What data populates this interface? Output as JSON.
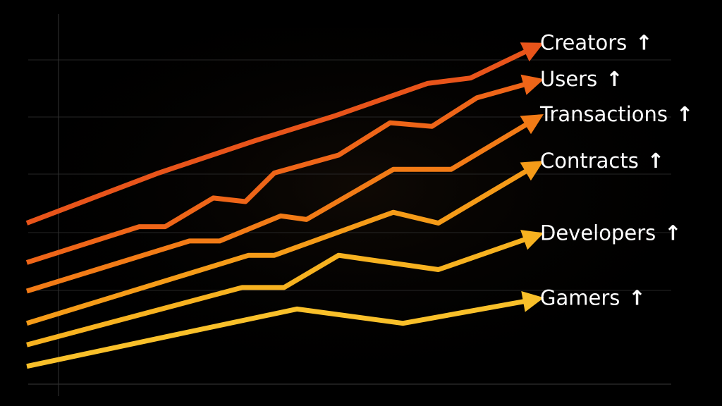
{
  "chart_data": {
    "type": "line",
    "title": "",
    "xlabel": "",
    "ylabel": "",
    "grid": true,
    "legend": "right",
    "arrow_glyph": "↑",
    "series": [
      {
        "name": "Creators",
        "color": "#e8541a",
        "x": [
          0,
          20.5,
          35.5,
          48,
          62.3,
          69,
          80
        ],
        "y": [
          44,
          58,
          67,
          74,
          83,
          84.5,
          94
        ]
      },
      {
        "name": "Users",
        "color": "#ee6518",
        "x": [
          0,
          17.5,
          21.5,
          29,
          34,
          38.5,
          48.5,
          56.5,
          63,
          70,
          80
        ],
        "y": [
          33,
          43,
          43,
          51,
          50,
          58,
          63,
          72,
          71,
          79,
          84
        ]
      },
      {
        "name": "Transactions",
        "color": "#f27b16",
        "x": [
          0,
          25.3,
          30,
          39.5,
          43.5,
          57,
          66,
          80
        ],
        "y": [
          25,
          39,
          39,
          46,
          45,
          59,
          59,
          74
        ]
      },
      {
        "name": "Contracts",
        "color": "#f59b18",
        "x": [
          0,
          34.5,
          38.5,
          57,
          64,
          80
        ],
        "y": [
          16,
          35,
          35,
          47,
          44,
          61
        ]
      },
      {
        "name": "Developers",
        "color": "#f7b220",
        "x": [
          0,
          33.5,
          40,
          48.5,
          64,
          80
        ],
        "y": [
          10,
          26,
          26,
          35,
          31,
          41
        ]
      },
      {
        "name": "Gamers",
        "color": "#f9c02a",
        "x": [
          0,
          42,
          58.5,
          80
        ],
        "y": [
          4,
          20,
          16,
          23
        ]
      }
    ],
    "xlim": [
      0,
      100
    ],
    "ylim": [
      0,
      100
    ]
  }
}
